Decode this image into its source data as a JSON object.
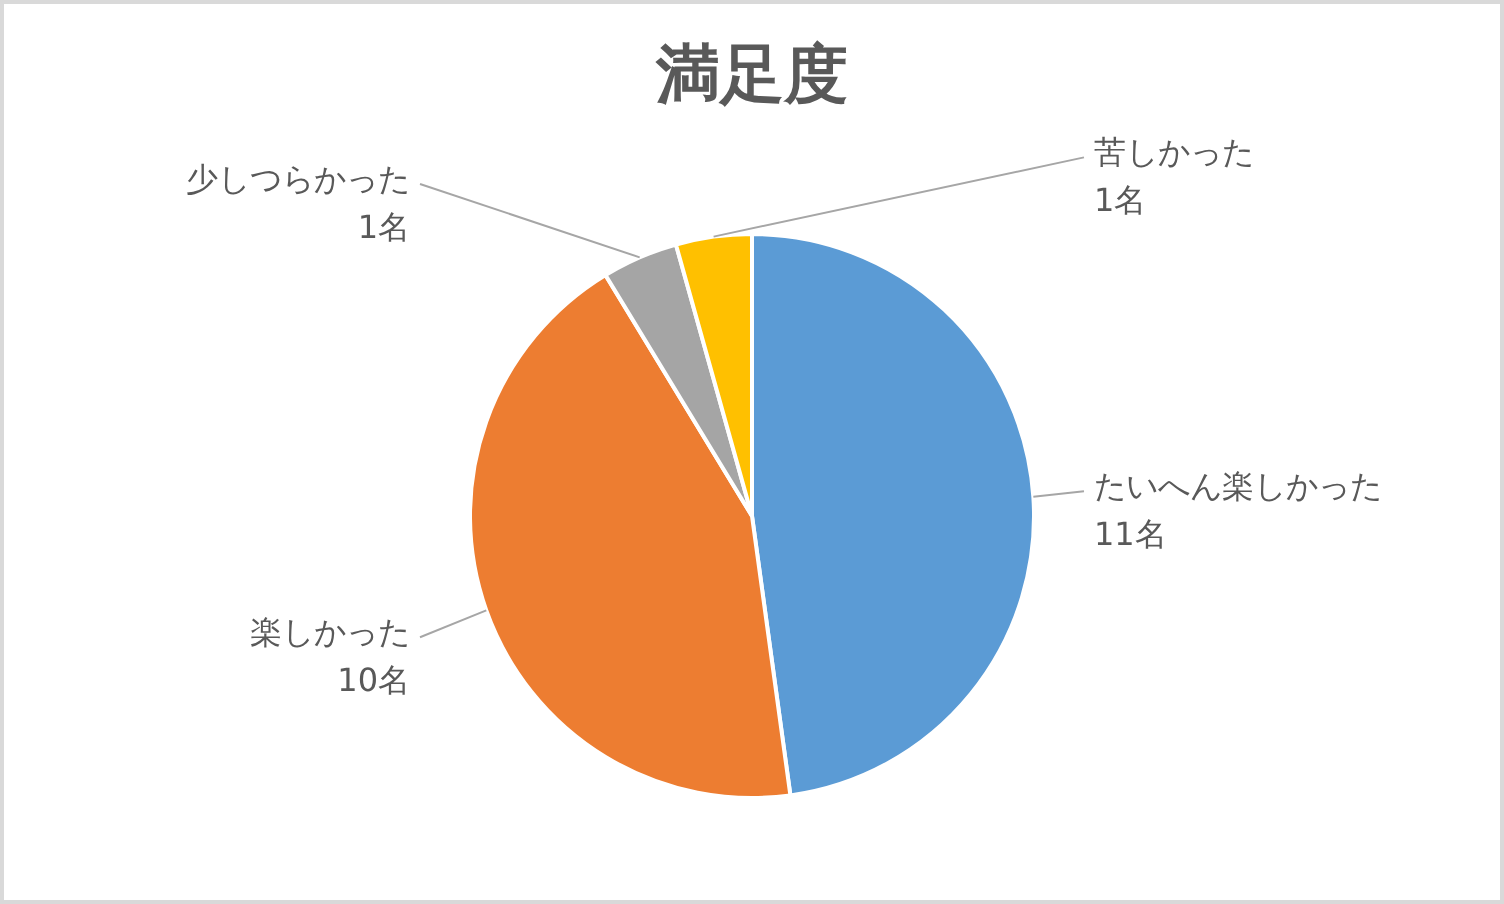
{
  "chart_data": {
    "type": "pie",
    "title": "満足度",
    "categories": [
      "たいへん楽しかった",
      "楽しかった",
      "少しつらかった",
      "苦しかった"
    ],
    "values": [
      11,
      10,
      1,
      1
    ],
    "colors": [
      "#5b9bd5",
      "#ed7d31",
      "#a5a5a5",
      "#ffc000"
    ],
    "value_labels": [
      "11名",
      "10名",
      "1名",
      "1名"
    ]
  }
}
